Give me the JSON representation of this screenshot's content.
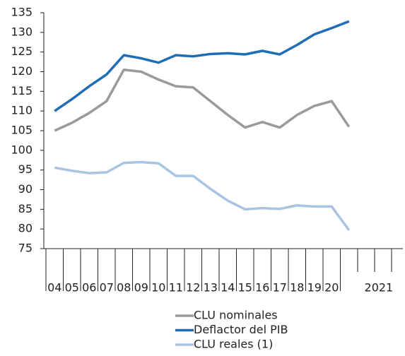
{
  "chart_data": {
    "type": "line",
    "categories": [
      "04",
      "05",
      "06",
      "07",
      "08",
      "09",
      "10",
      "11",
      "12",
      "13",
      "14",
      "15",
      "16",
      "17",
      "18",
      "19",
      "20",
      null
    ],
    "group_label": "2021",
    "series": [
      {
        "name": "CLU nominales",
        "color": "#9a9a9a",
        "values": [
          105,
          107,
          109.5,
          112.5,
          120.5,
          120,
          118,
          116.3,
          116,
          112.5,
          109,
          105.8,
          107.2,
          105.8,
          109,
          111.3,
          112.5,
          106
        ]
      },
      {
        "name": "Deflactor del PIB",
        "color": "#1f6db5",
        "values": [
          110,
          113,
          116.3,
          119.3,
          124.2,
          123.4,
          122.3,
          124.2,
          123.9,
          124.5,
          124.7,
          124.4,
          125.3,
          124.4,
          126.8,
          129.5,
          131.1,
          132.8
        ]
      },
      {
        "name": "CLU reales (1)",
        "color": "#a9c4e3",
        "values": [
          95.6,
          94.8,
          94.2,
          94.4,
          96.8,
          97,
          96.7,
          93.5,
          93.5,
          90.2,
          87.2,
          85,
          85.3,
          85.1,
          86,
          85.7,
          85.7,
          79.7
        ]
      }
    ],
    "ylim": [
      75,
      135
    ],
    "yticks": [
      75,
      80,
      85,
      90,
      95,
      100,
      105,
      110,
      115,
      120,
      125,
      130,
      135
    ],
    "grid": false,
    "legend": "bottom"
  }
}
